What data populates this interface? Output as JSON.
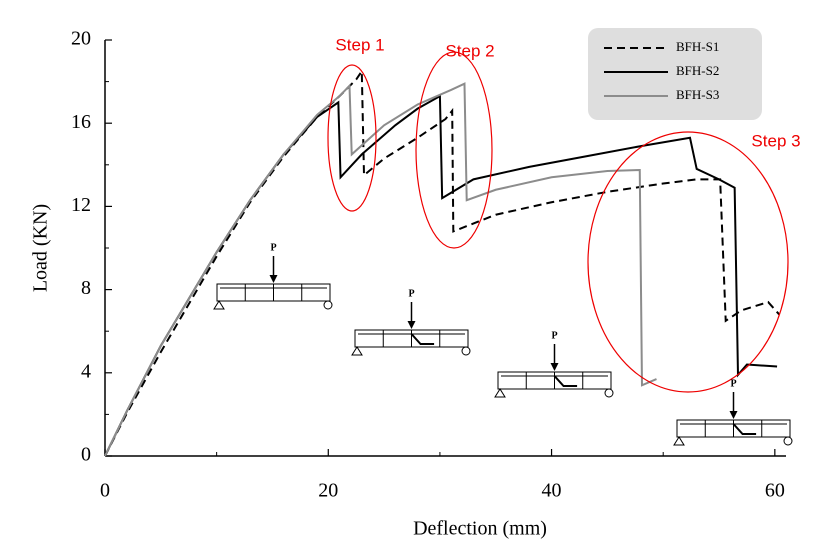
{
  "chart_data": {
    "type": "line",
    "xlabel": "Deflection (mm)",
    "ylabel": "Load (KN)",
    "xlim": [
      0,
      61
    ],
    "ylim": [
      0,
      20
    ],
    "xticks": [
      0,
      20,
      40,
      60
    ],
    "yticks": [
      0,
      4,
      8,
      12,
      16,
      20
    ],
    "legend": "upper right",
    "annotations": [
      "Step 1",
      "Step 2",
      "Step 3"
    ],
    "load_labels": [
      "P",
      "P",
      "P",
      "P"
    ],
    "series": [
      {
        "name": "BFH-S1",
        "color": "#000000",
        "dash": true,
        "x": [
          0,
          2,
          5,
          10,
          13,
          16,
          19,
          21,
          22.5,
          23.0,
          23.2,
          25,
          28,
          30.5,
          31.1,
          31.2,
          35,
          40,
          45,
          50,
          53,
          55.1,
          55.6,
          57,
          59.4,
          60.4
        ],
        "values": [
          0,
          2.1,
          5.0,
          9.6,
          12.2,
          14.4,
          16.3,
          17.3,
          18.1,
          18.5,
          13.5,
          14.3,
          15.3,
          16.2,
          16.6,
          10.8,
          11.6,
          12.2,
          12.7,
          13.1,
          13.3,
          13.3,
          6.5,
          7.0,
          7.4,
          6.8
        ]
      },
      {
        "name": "BFH-S2",
        "color": "#000000",
        "dash": false,
        "x": [
          0,
          2,
          5,
          10,
          13,
          16,
          19,
          20.9,
          21.1,
          23,
          26,
          28,
          30.0,
          30.2,
          33,
          38,
          43,
          48,
          52.4,
          53,
          55,
          56.4,
          56.7,
          57.5,
          60.2
        ],
        "values": [
          0,
          2.2,
          5.3,
          9.8,
          12.3,
          14.5,
          16.3,
          17.0,
          13.4,
          14.5,
          15.9,
          16.7,
          17.3,
          12.4,
          13.3,
          13.9,
          14.4,
          14.9,
          15.3,
          13.8,
          13.3,
          12.9,
          3.9,
          4.4,
          4.3
        ]
      },
      {
        "name": "BFH-S3",
        "color": "#8c8c8c",
        "dash": false,
        "x": [
          0,
          2,
          5,
          10,
          13,
          16,
          19,
          21.0,
          21.9,
          22.1,
          25,
          28,
          31,
          32.2,
          32.4,
          35,
          40,
          45,
          47.9,
          48.1,
          49.4
        ],
        "values": [
          0,
          2.2,
          5.3,
          9.8,
          12.3,
          14.5,
          16.4,
          17.3,
          17.8,
          14.5,
          15.9,
          16.9,
          17.6,
          17.9,
          12.3,
          12.8,
          13.4,
          13.7,
          13.75,
          3.4,
          3.7
        ]
      }
    ]
  }
}
